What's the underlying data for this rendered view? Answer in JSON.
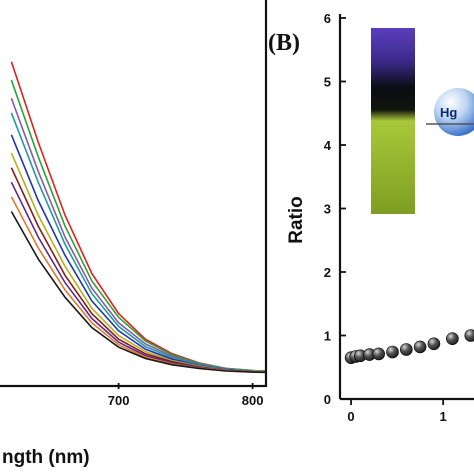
{
  "chart_data": [
    {
      "panel": "A",
      "type": "line",
      "xlabel": "ngth (nm)",
      "ylabel": "",
      "xlim": [
        610,
        810
      ],
      "ylim": [
        0,
        1
      ],
      "x_ticks": [
        700,
        800
      ],
      "x": [
        620,
        640,
        660,
        680,
        700,
        720,
        740,
        760,
        780,
        800,
        810
      ],
      "series": [
        {
          "color": "#e0201c",
          "values": [
            0.88,
            0.66,
            0.46,
            0.3,
            0.19,
            0.12,
            0.08,
            0.055,
            0.04,
            0.034,
            0.033
          ]
        },
        {
          "color": "#2aa33a",
          "values": [
            0.83,
            0.62,
            0.43,
            0.28,
            0.18,
            0.115,
            0.077,
            0.054,
            0.04,
            0.034,
            0.033
          ]
        },
        {
          "color": "#8a5aa8",
          "values": [
            0.78,
            0.58,
            0.4,
            0.26,
            0.165,
            0.107,
            0.073,
            0.052,
            0.039,
            0.033,
            0.032
          ]
        },
        {
          "color": "#1f9b9e",
          "values": [
            0.74,
            0.55,
            0.38,
            0.245,
            0.155,
            0.1,
            0.069,
            0.05,
            0.038,
            0.033,
            0.032
          ]
        },
        {
          "color": "#2233b5",
          "values": [
            0.68,
            0.5,
            0.35,
            0.225,
            0.143,
            0.093,
            0.065,
            0.048,
            0.037,
            0.032,
            0.031
          ]
        },
        {
          "color": "#b6b21e",
          "values": [
            0.63,
            0.46,
            0.32,
            0.205,
            0.13,
            0.086,
            0.061,
            0.046,
            0.036,
            0.032,
            0.031
          ]
        },
        {
          "color": "#8b1a1a",
          "values": [
            0.59,
            0.43,
            0.295,
            0.19,
            0.12,
            0.08,
            0.058,
            0.044,
            0.035,
            0.031,
            0.03
          ]
        },
        {
          "color": "#5b2c8e",
          "values": [
            0.55,
            0.4,
            0.275,
            0.177,
            0.112,
            0.075,
            0.055,
            0.043,
            0.035,
            0.031,
            0.03
          ]
        },
        {
          "color": "#e07a2a",
          "values": [
            0.51,
            0.37,
            0.255,
            0.165,
            0.105,
            0.071,
            0.052,
            0.041,
            0.034,
            0.03,
            0.03
          ]
        },
        {
          "color": "#1a1a1a",
          "values": [
            0.47,
            0.34,
            0.235,
            0.152,
            0.098,
            0.067,
            0.05,
            0.04,
            0.033,
            0.03,
            0.029
          ]
        }
      ]
    },
    {
      "panel": "B",
      "panel_label": "(B)",
      "type": "scatter",
      "xlabel": "",
      "ylabel": "Ratio",
      "xlim": [
        -0.12,
        1.4
      ],
      "ylim": [
        0,
        6
      ],
      "x_ticks": [
        0,
        1
      ],
      "y_ticks": [
        0,
        1,
        2,
        3,
        4,
        5,
        6
      ],
      "marker_color": "#1a1a1a",
      "points": [
        {
          "x": 0.0,
          "y": 0.65
        },
        {
          "x": 0.05,
          "y": 0.67
        },
        {
          "x": 0.1,
          "y": 0.68
        },
        {
          "x": 0.2,
          "y": 0.7
        },
        {
          "x": 0.3,
          "y": 0.71
        },
        {
          "x": 0.45,
          "y": 0.74
        },
        {
          "x": 0.6,
          "y": 0.78
        },
        {
          "x": 0.75,
          "y": 0.82
        },
        {
          "x": 0.9,
          "y": 0.87
        },
        {
          "x": 1.1,
          "y": 0.95
        },
        {
          "x": 1.3,
          "y": 1.0
        }
      ],
      "inset": {
        "ion_label": "Hg",
        "ion_color": "#2f6cc4",
        "vial_colors": {
          "top": "#5b3dbf",
          "middle": "#0c0c14",
          "bottom": "#a8c83a"
        }
      }
    }
  ]
}
